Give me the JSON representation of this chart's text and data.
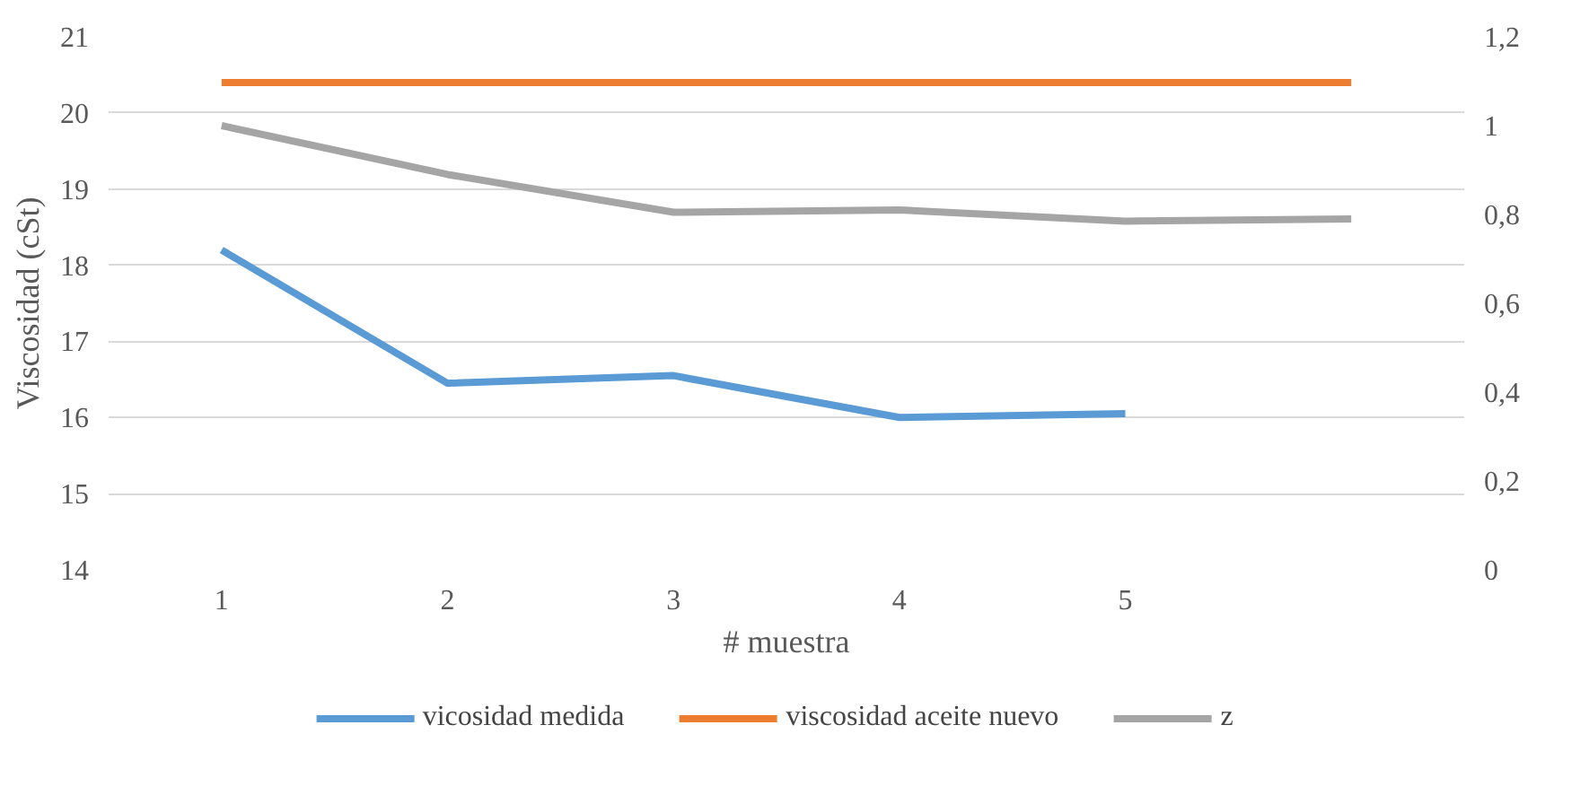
{
  "chart_data": {
    "type": "line",
    "xlabel": "# muestra",
    "ylabel": "Viscosidad (cSt)",
    "categories": [
      "1",
      "2",
      "3",
      "4",
      "5",
      null
    ],
    "ylim": [
      14,
      21
    ],
    "yticks": [
      14,
      15,
      16,
      17,
      18,
      19,
      20,
      21
    ],
    "y2lim": [
      0,
      1.2
    ],
    "y2ticks": [
      {
        "value": 0,
        "label": "0"
      },
      {
        "value": 0.2,
        "label": "0,2"
      },
      {
        "value": 0.4,
        "label": "0,4"
      },
      {
        "value": 0.6,
        "label": "0,6"
      },
      {
        "value": 0.8,
        "label": "0,8"
      },
      {
        "value": 1,
        "label": "1"
      },
      {
        "value": 1.2,
        "label": "1,2"
      }
    ],
    "grid": "y",
    "legend": "bottom",
    "tick_labels": "xy",
    "series": [
      {
        "name": "vicosidad medida",
        "color": "#5b9bd5",
        "values": [
          18.2,
          16.45,
          16.55,
          16.0,
          16.05,
          null
        ]
      },
      {
        "name": "viscosidad aceite nuevo",
        "color": "#ed7d31",
        "values": [
          20.4,
          20.4,
          20.4,
          20.4,
          20.4,
          20.4
        ]
      },
      {
        "name": "z",
        "color": "#a5a5a5",
        "axis": "y2",
        "values": [
          1.0,
          0.89,
          0.805,
          0.81,
          0.785,
          0.79
        ]
      }
    ]
  }
}
